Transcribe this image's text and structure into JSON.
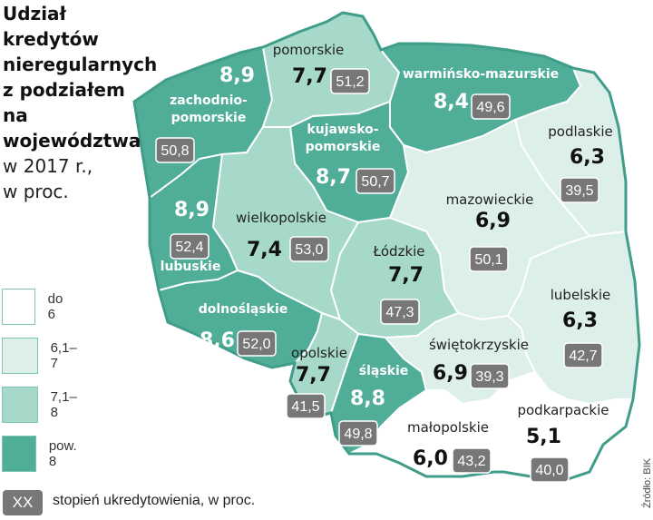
{
  "title": {
    "bold_lines": [
      "Udział",
      "kredytów",
      "nieregularnych",
      "z podziałem",
      "na",
      "województwa"
    ],
    "normal_lines": [
      "w 2017 r.,",
      "w proc."
    ]
  },
  "legend": {
    "items": [
      {
        "label": "do 6",
        "color": "#ffffff"
      },
      {
        "label": "6,1–7",
        "color": "#dcefe9"
      },
      {
        "label": "7,1–8",
        "color": "#a7d9cb"
      },
      {
        "label": "pow. 8",
        "color": "#4fad98"
      }
    ],
    "badge_text": "XX",
    "badge_label": "stopień ukredytowienia, w proc.",
    "badge_color": "#777777"
  },
  "source": "Źródło: BIK",
  "colors": {
    "border": "#ffffff",
    "outline": "#3f9d89",
    "dark_text": "#ffffff",
    "light_text": "#222222",
    "value_dark": "#111111"
  },
  "regions": [
    {
      "id": "zachodniopomorskie",
      "name_lines": [
        "zachodnio-",
        "pomorskie"
      ],
      "value": "8,9",
      "credit": "50,8",
      "category": 3
    },
    {
      "id": "pomorskie",
      "name_lines": [
        "pomorskie"
      ],
      "value": "7,7",
      "credit": "51,2",
      "category": 2
    },
    {
      "id": "warminsko-mazurskie",
      "name_lines": [
        "warmińsko-mazurskie"
      ],
      "value": "8,4",
      "credit": "49,6",
      "category": 3
    },
    {
      "id": "podlaskie",
      "name_lines": [
        "podlaskie"
      ],
      "value": "6,3",
      "credit": "39,5",
      "category": 1
    },
    {
      "id": "kujawsko-pomorskie",
      "name_lines": [
        "kujawsko-",
        "pomorskie"
      ],
      "value": "8,7",
      "credit": "50,7",
      "category": 3
    },
    {
      "id": "lubuskie",
      "name_lines": [
        "lubuskie"
      ],
      "value": "8,9",
      "credit": "52,4",
      "category": 3
    },
    {
      "id": "wielkopolskie",
      "name_lines": [
        "wielkopolskie"
      ],
      "value": "7,4",
      "credit": "53,0",
      "category": 2
    },
    {
      "id": "mazowieckie",
      "name_lines": [
        "mazowieckie"
      ],
      "value": "6,9",
      "credit": "50,1",
      "category": 1
    },
    {
      "id": "lodzkie",
      "name_lines": [
        "Łódzkie"
      ],
      "value": "7,7",
      "credit": "47,3",
      "category": 2
    },
    {
      "id": "dolnoslaskie",
      "name_lines": [
        "dolnośląskie"
      ],
      "value": "8,6",
      "credit": "52,0",
      "category": 3
    },
    {
      "id": "lubelskie",
      "name_lines": [
        "lubelskie"
      ],
      "value": "6,3",
      "credit": "42,7",
      "category": 1
    },
    {
      "id": "opolskie",
      "name_lines": [
        "opolskie"
      ],
      "value": "7,7",
      "credit": "41,5",
      "category": 2
    },
    {
      "id": "slaskie",
      "name_lines": [
        "śląskie"
      ],
      "value": "8,8",
      "credit": "49,8",
      "category": 3
    },
    {
      "id": "swietokrzyskie",
      "name_lines": [
        "świętokrzyskie"
      ],
      "value": "6,9",
      "credit": "39,3",
      "category": 1
    },
    {
      "id": "malopolskie",
      "name_lines": [
        "małopolskie"
      ],
      "value": "6,0",
      "credit": "43,2",
      "category": 0
    },
    {
      "id": "podkarpackie",
      "name_lines": [
        "podkarpackie"
      ],
      "value": "5,1",
      "credit": "40,0",
      "category": 0
    }
  ]
}
